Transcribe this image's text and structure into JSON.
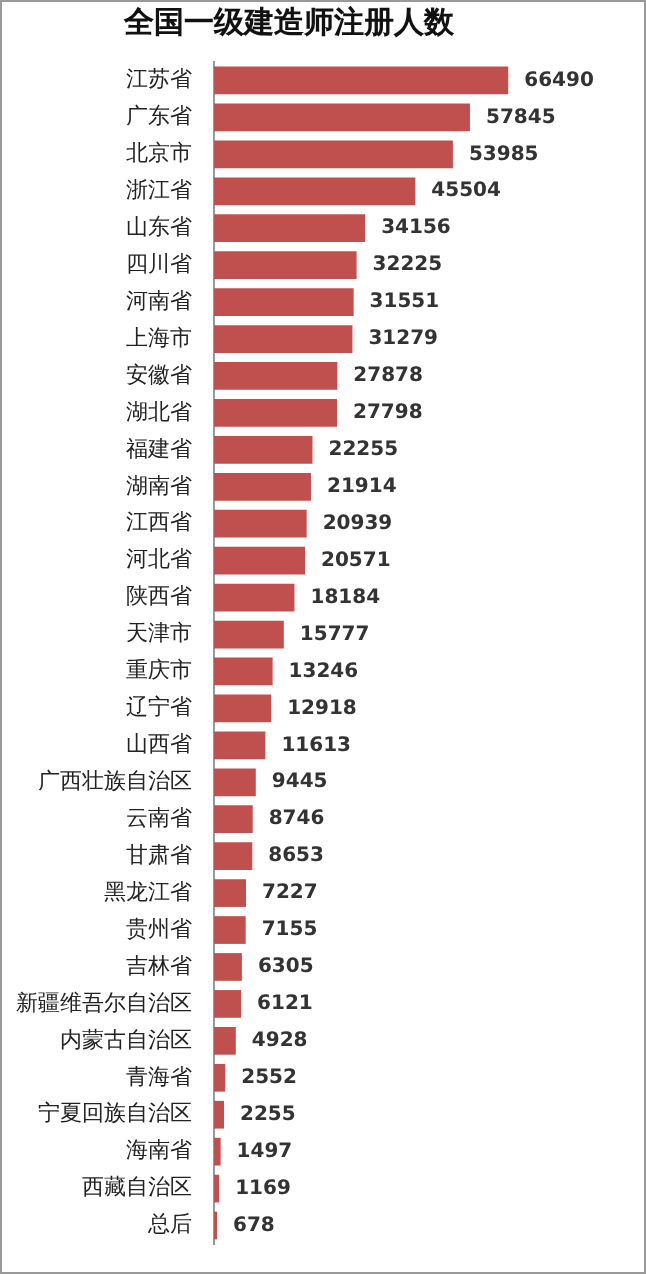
{
  "chart_data": {
    "type": "bar",
    "orientation": "horizontal",
    "title": "全国一级建造师注册人数",
    "categories": [
      "江苏省",
      "广东省",
      "北京市",
      "浙江省",
      "山东省",
      "四川省",
      "河南省",
      "上海市",
      "安徽省",
      "湖北省",
      "福建省",
      "湖南省",
      "江西省",
      "河北省",
      "陕西省",
      "天津市",
      "重庆市",
      "辽宁省",
      "山西省",
      "广西壮族自治区",
      "云南省",
      "甘肃省",
      "黑龙江省",
      "贵州省",
      "吉林省",
      "新疆维吾尔自治区",
      "内蒙古自治区",
      "青海省",
      "宁夏回族自治区",
      "海南省",
      "西藏自治区",
      "总后"
    ],
    "values": [
      66490,
      57845,
      53985,
      45504,
      34156,
      32225,
      31551,
      31279,
      27878,
      27798,
      22255,
      21914,
      20939,
      20571,
      18184,
      15777,
      13246,
      12918,
      11613,
      9445,
      8746,
      8653,
      7227,
      7155,
      6305,
      6121,
      4928,
      2552,
      2255,
      1497,
      1169,
      678
    ],
    "color": "#c0504d",
    "data_labels": true,
    "grid": false,
    "legend": false,
    "tick_labels": "y"
  }
}
